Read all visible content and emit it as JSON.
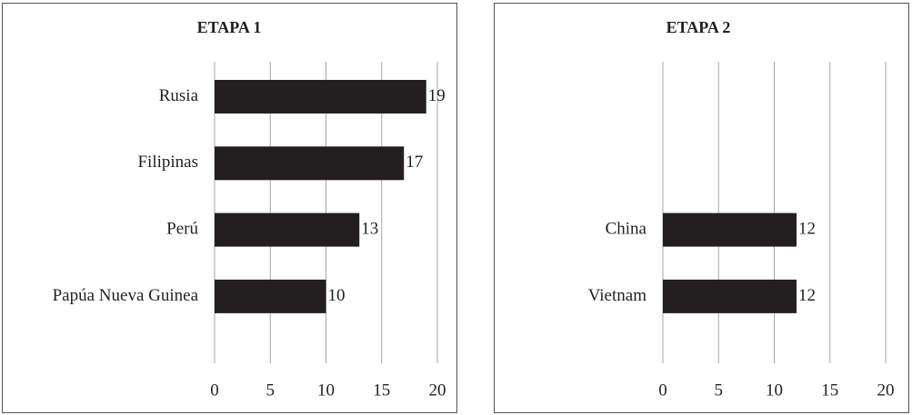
{
  "chart_data": [
    {
      "type": "bar",
      "orientation": "horizontal",
      "title": "ETAPA 1",
      "categories": [
        "Rusia",
        "Filipinas",
        "Perú",
        "Papúa Nueva Guinea"
      ],
      "values": [
        19,
        17,
        13,
        10
      ],
      "color": "#231f20",
      "xlim": [
        0,
        20
      ],
      "xticks": [
        0,
        5,
        10,
        15,
        20
      ],
      "grid": true
    },
    {
      "type": "bar",
      "orientation": "horizontal",
      "title": "ETAPA 2",
      "categories": [
        null,
        null,
        "China",
        "Vietnam"
      ],
      "values": [
        null,
        null,
        12,
        12
      ],
      "color": "#231f20",
      "xlim": [
        0,
        20
      ],
      "xticks": [
        0,
        5,
        10,
        15,
        20
      ],
      "grid": true
    }
  ]
}
